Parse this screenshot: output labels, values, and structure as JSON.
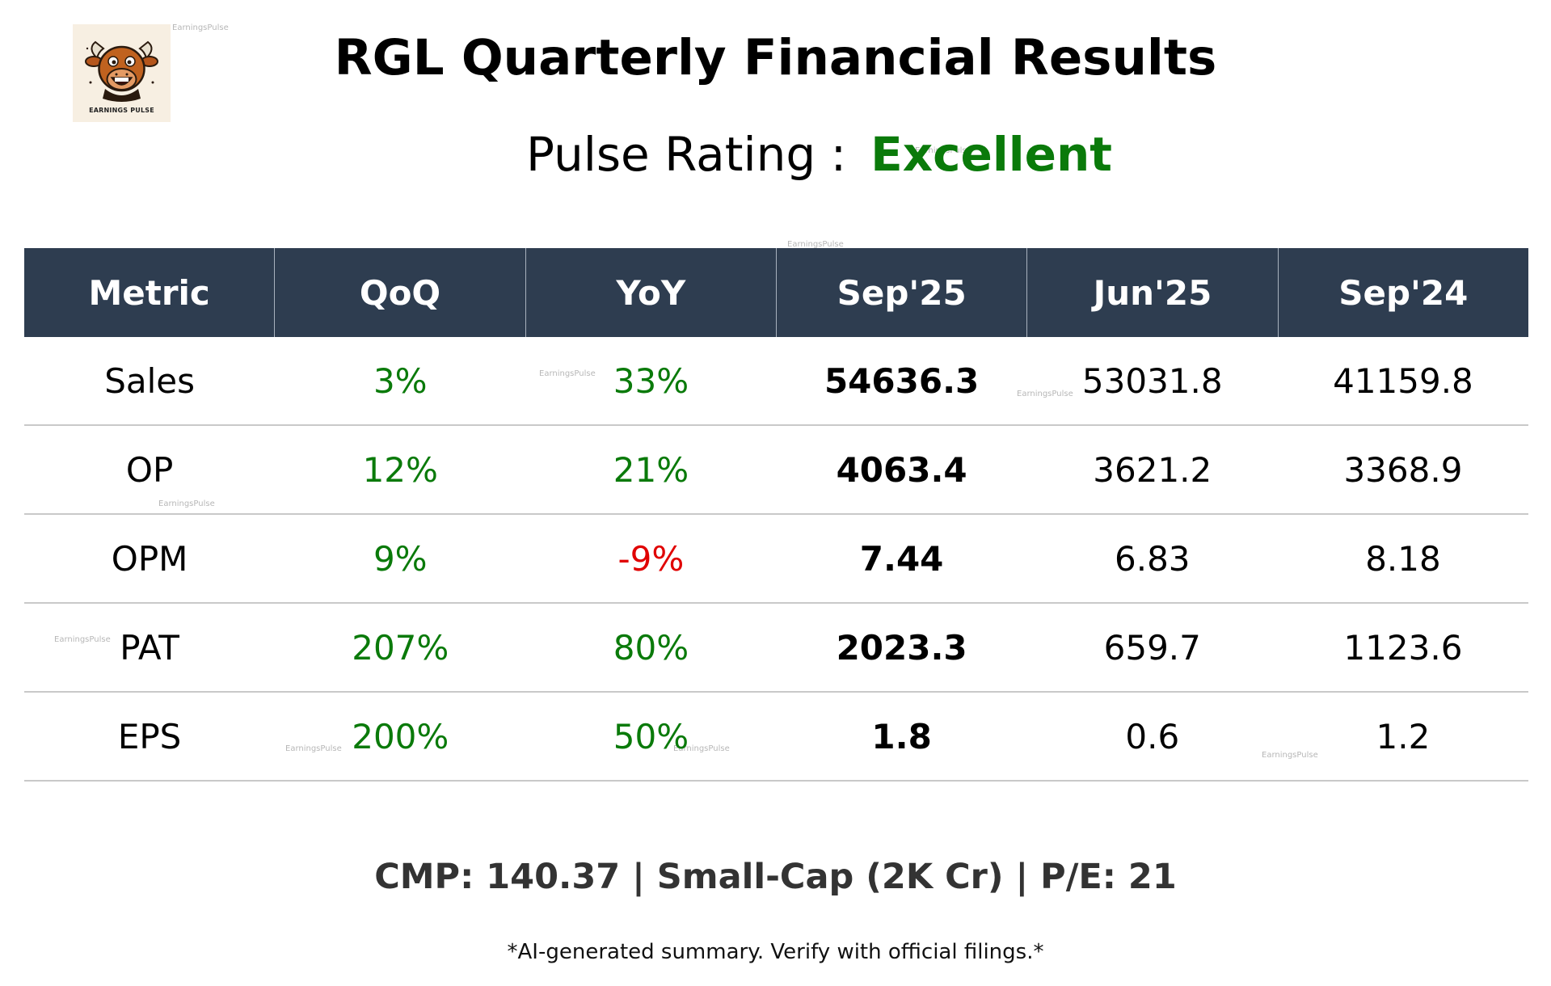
{
  "logo": {
    "caption": "EARNINGS PULSE",
    "icon": "bull-mascot-icon"
  },
  "watermark": "EarningsPulse",
  "title": "RGL Quarterly Financial Results",
  "rating": {
    "label": "Pulse Rating :",
    "value": "Excellent",
    "color": "#0a7a0a"
  },
  "table": {
    "headers": [
      "Metric",
      "QoQ",
      "YoY",
      "Sep'25",
      "Jun'25",
      "Sep'24"
    ],
    "rows": [
      {
        "metric": "Sales",
        "qoq": "3%",
        "yoy": "33%",
        "sep25": "54636.3",
        "jun25": "53031.8",
        "sep24": "41159.8"
      },
      {
        "metric": "OP",
        "qoq": "12%",
        "yoy": "21%",
        "sep25": "4063.4",
        "jun25": "3621.2",
        "sep24": "3368.9"
      },
      {
        "metric": "OPM",
        "qoq": "9%",
        "yoy": "-9%",
        "sep25": "7.44",
        "jun25": "6.83",
        "sep24": "8.18"
      },
      {
        "metric": "PAT",
        "qoq": "207%",
        "yoy": "80%",
        "sep25": "2023.3",
        "jun25": "659.7",
        "sep24": "1123.6"
      },
      {
        "metric": "EPS",
        "qoq": "200%",
        "yoy": "50%",
        "sep25": "1.8",
        "jun25": "0.6",
        "sep24": "1.2"
      }
    ],
    "header_bg": "#2e3d50",
    "positive_color": "#0a7a0a",
    "negative_color": "#e00000"
  },
  "footer": {
    "cmp": "CMP: 140.37 | Small-Cap (2K Cr) | P/E: 21",
    "disclaimer": "*AI-generated summary. Verify with official filings.*"
  }
}
